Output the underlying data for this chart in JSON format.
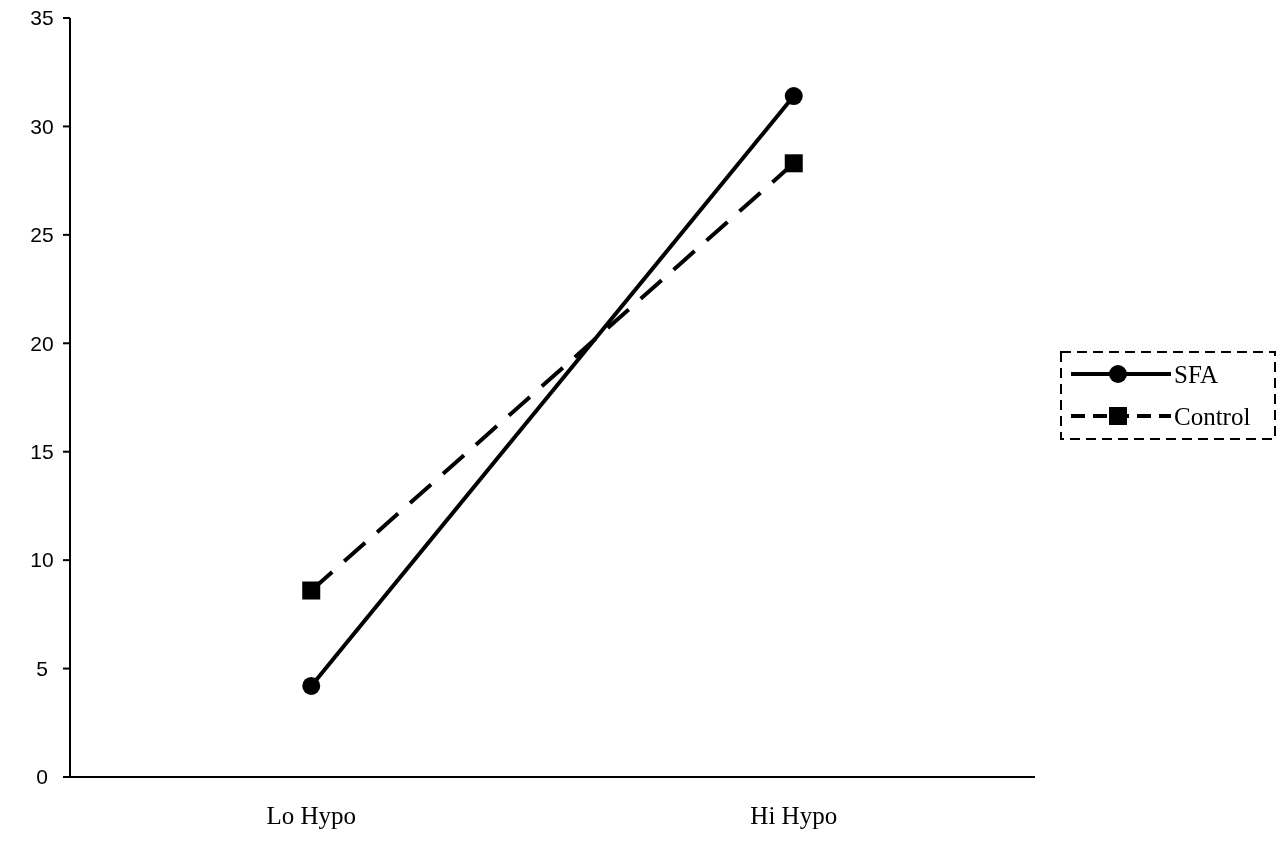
{
  "chart_data": {
    "type": "line",
    "categories": [
      "Lo Hypo",
      "Hi Hypo"
    ],
    "series": [
      {
        "name": "SFA",
        "color": "#000000",
        "values": [
          4.2,
          31.4
        ],
        "marker": "circle",
        "line_style": "solid"
      },
      {
        "name": "Control",
        "color": "#000000",
        "values": [
          8.6,
          28.3
        ],
        "marker": "square",
        "line_style": "dashed"
      }
    ],
    "ylim": [
      0,
      35
    ],
    "yticks": [
      0,
      5,
      10,
      15,
      20,
      25,
      30,
      35
    ],
    "grid": false,
    "legend": "right"
  }
}
